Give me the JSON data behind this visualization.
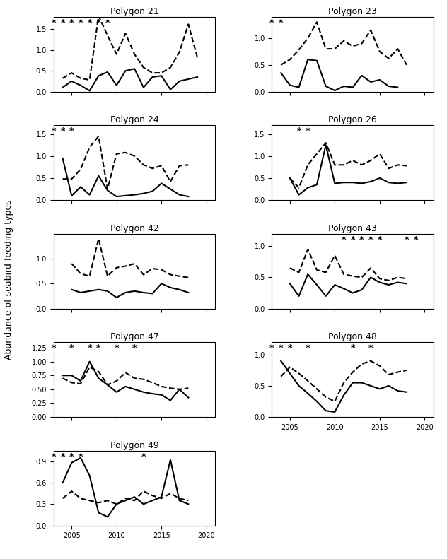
{
  "years": [
    2003,
    2004,
    2005,
    2006,
    2007,
    2008,
    2009,
    2010,
    2011,
    2012,
    2013,
    2014,
    2015,
    2016,
    2017,
    2018,
    2019,
    2020
  ],
  "polygons": [
    {
      "name": "Polygon 21",
      "row": 0,
      "col": 0,
      "solid": [
        null,
        0.1,
        0.25,
        0.15,
        0.02,
        0.38,
        0.47,
        0.15,
        0.5,
        0.55,
        0.1,
        0.35,
        0.38,
        0.05,
        0.25,
        0.3,
        0.35,
        null
      ],
      "dashed": [
        null,
        0.32,
        0.45,
        0.32,
        0.28,
        1.82,
        1.35,
        0.9,
        1.4,
        0.9,
        0.58,
        0.45,
        0.45,
        0.58,
        0.95,
        1.62,
        0.82,
        null
      ],
      "star_years": [
        2003,
        2004,
        2005,
        2006,
        2007,
        2008,
        2009
      ],
      "ylim": [
        0,
        1.8
      ],
      "yticks": [
        0.0,
        0.5,
        1.0,
        1.5
      ]
    },
    {
      "name": "Polygon 23",
      "row": 0,
      "col": 1,
      "solid": [
        null,
        0.35,
        0.12,
        0.08,
        0.6,
        0.58,
        0.1,
        0.02,
        0.1,
        0.08,
        0.3,
        0.18,
        0.22,
        0.1,
        0.08,
        null,
        null,
        null
      ],
      "dashed": [
        null,
        0.5,
        0.6,
        0.78,
        1.0,
        1.3,
        0.8,
        0.8,
        0.95,
        0.85,
        0.9,
        1.15,
        0.75,
        0.62,
        0.8,
        0.5,
        null,
        null
      ],
      "star_years": [
        2003,
        2004
      ],
      "ylim": [
        0,
        1.4
      ],
      "yticks": [
        0.0,
        0.5,
        1.0
      ]
    },
    {
      "name": "Polygon 24",
      "row": 1,
      "col": 0,
      "solid": [
        null,
        0.95,
        0.1,
        0.3,
        0.12,
        0.55,
        0.22,
        0.08,
        0.1,
        0.12,
        0.15,
        0.2,
        0.38,
        0.25,
        0.12,
        0.08,
        null,
        null
      ],
      "dashed": [
        null,
        0.48,
        0.48,
        0.7,
        1.2,
        1.45,
        0.25,
        1.05,
        1.08,
        1.0,
        0.8,
        0.72,
        0.78,
        0.42,
        0.78,
        0.8,
        null,
        null
      ],
      "star_years": [
        2003,
        2004,
        2005
      ],
      "ylim": [
        0,
        1.7
      ],
      "yticks": [
        0.0,
        0.5,
        1.0,
        1.5
      ]
    },
    {
      "name": "Polygon 26",
      "row": 1,
      "col": 1,
      "solid": [
        null,
        null,
        0.5,
        0.12,
        0.28,
        0.35,
        1.25,
        0.38,
        0.4,
        0.4,
        0.38,
        0.42,
        0.5,
        0.4,
        0.38,
        0.4,
        null,
        null
      ],
      "dashed": [
        null,
        null,
        0.5,
        0.28,
        0.8,
        1.05,
        1.3,
        0.8,
        0.8,
        0.9,
        0.8,
        0.9,
        1.05,
        0.72,
        0.8,
        0.78,
        null,
        null
      ],
      "star_years": [
        2006,
        2007
      ],
      "ylim": [
        0,
        1.7
      ],
      "yticks": [
        0.0,
        0.5,
        1.0,
        1.5
      ]
    },
    {
      "name": "Polygon 42",
      "row": 2,
      "col": 0,
      "solid": [
        null,
        null,
        0.38,
        0.32,
        0.35,
        0.38,
        0.35,
        0.22,
        0.32,
        0.35,
        0.32,
        0.3,
        0.5,
        0.42,
        0.38,
        0.32,
        null,
        null
      ],
      "dashed": [
        null,
        null,
        0.9,
        0.7,
        0.65,
        1.4,
        0.65,
        0.82,
        0.85,
        0.9,
        0.68,
        0.8,
        0.78,
        0.68,
        0.65,
        0.62,
        null,
        null
      ],
      "star_years": [],
      "ylim": [
        0,
        1.5
      ],
      "yticks": [
        0.0,
        0.5,
        1.0
      ]
    },
    {
      "name": "Polygon 43",
      "row": 2,
      "col": 1,
      "solid": [
        null,
        null,
        0.4,
        0.2,
        0.55,
        0.38,
        0.2,
        0.38,
        0.32,
        0.25,
        0.3,
        0.5,
        0.42,
        0.38,
        0.42,
        0.4,
        null,
        null
      ],
      "dashed": [
        null,
        null,
        0.65,
        0.58,
        0.95,
        0.62,
        0.58,
        0.85,
        0.55,
        0.52,
        0.5,
        0.65,
        0.48,
        0.45,
        0.5,
        0.48,
        null,
        null
      ],
      "star_years": [
        2011,
        2012,
        2013,
        2014,
        2015,
        2018,
        2019
      ],
      "ylim": [
        0,
        1.2
      ],
      "yticks": [
        0.0,
        0.5,
        1.0
      ]
    },
    {
      "name": "Polygon 47",
      "row": 3,
      "col": 0,
      "solid": [
        null,
        0.75,
        0.75,
        0.65,
        1.0,
        0.7,
        0.58,
        0.45,
        0.55,
        0.5,
        0.45,
        0.42,
        0.4,
        0.3,
        0.5,
        0.35,
        null,
        null
      ],
      "dashed": [
        null,
        0.7,
        0.62,
        0.6,
        0.9,
        0.82,
        0.58,
        0.65,
        0.8,
        0.7,
        0.68,
        0.62,
        0.55,
        0.52,
        0.5,
        0.52,
        null,
        null
      ],
      "star_years": [
        2003,
        2005,
        2007,
        2008,
        2010,
        2012
      ],
      "ylim": [
        0,
        1.35
      ],
      "yticks": [
        0.0,
        0.25,
        0.5,
        0.75,
        1.0,
        1.25
      ]
    },
    {
      "name": "Polygon 48",
      "row": 3,
      "col": 1,
      "solid": [
        null,
        0.9,
        0.7,
        0.5,
        0.38,
        0.25,
        0.1,
        0.08,
        0.35,
        0.55,
        0.55,
        0.5,
        0.45,
        0.5,
        0.42,
        0.4,
        null,
        null
      ],
      "dashed": [
        null,
        0.65,
        0.8,
        0.7,
        0.58,
        0.45,
        0.32,
        0.25,
        0.55,
        0.72,
        0.85,
        0.9,
        0.82,
        0.68,
        0.72,
        0.75,
        null,
        null
      ],
      "star_years": [
        2003,
        2004,
        2005,
        2007,
        2012,
        2014
      ],
      "ylim": [
        0,
        1.2
      ],
      "yticks": [
        0.0,
        0.5,
        1.0
      ]
    },
    {
      "name": "Polygon 49",
      "row": 4,
      "col": 0,
      "solid": [
        null,
        0.6,
        0.88,
        0.95,
        0.7,
        0.18,
        0.12,
        0.3,
        0.35,
        0.4,
        0.3,
        0.35,
        0.4,
        0.92,
        0.35,
        0.3,
        null,
        null
      ],
      "dashed": [
        null,
        0.38,
        0.48,
        0.38,
        0.35,
        0.32,
        0.35,
        0.3,
        0.38,
        0.35,
        0.48,
        0.42,
        0.38,
        0.45,
        0.38,
        0.35,
        null,
        null
      ],
      "star_years": [
        2003,
        2004,
        2005,
        2006,
        2013
      ],
      "ylim": [
        0,
        1.05
      ],
      "yticks": [
        0.0,
        0.3,
        0.6,
        0.9
      ]
    }
  ],
  "ylabel": "Abundance of seabird feeding types",
  "line_color": "black",
  "solid_lw": 1.5,
  "dashed_lw": 1.5
}
